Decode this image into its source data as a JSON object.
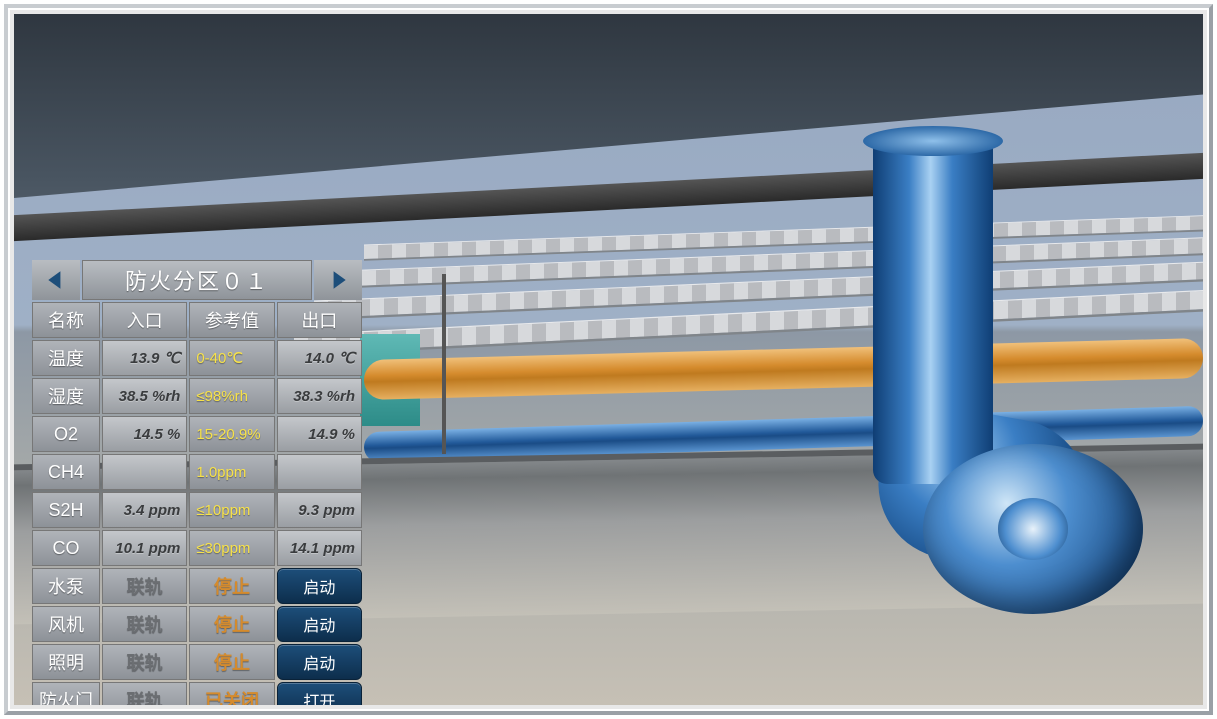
{
  "zone": {
    "title": "防火分区０１"
  },
  "headers": {
    "name": "名称",
    "inlet": "入口",
    "ref": "参考值",
    "outlet": "出口"
  },
  "sensors": [
    {
      "name": "温度",
      "inlet": "13.9 ℃",
      "ref": "0-40℃",
      "outlet": "14.0 ℃"
    },
    {
      "name": "湿度",
      "inlet": "38.5 %rh",
      "ref": "≤98%rh",
      "outlet": "38.3 %rh"
    },
    {
      "name": "O2",
      "inlet": "14.5 %",
      "ref": "15-20.9%",
      "outlet": "14.9 %"
    },
    {
      "name": "CH4",
      "inlet": "",
      "ref": "1.0ppm",
      "outlet": ""
    },
    {
      "name": "S2H",
      "inlet": "3.4 ppm",
      "ref": "≤10ppm",
      "outlet": "9.3 ppm"
    },
    {
      "name": "CO",
      "inlet": "10.1 ppm",
      "ref": "≤30ppm",
      "outlet": "14.1 ppm"
    }
  ],
  "devices": [
    {
      "name": "水泵",
      "link": "联轨",
      "status": "停止",
      "action": "启动"
    },
    {
      "name": "风机",
      "link": "联轨",
      "status": "停止",
      "action": "启动"
    },
    {
      "name": "照明",
      "link": "联轨",
      "status": "停止",
      "action": "启动"
    },
    {
      "name": "防火门",
      "link": "联轨",
      "status": "已关闭",
      "action": "打开"
    }
  ],
  "colors": {
    "ref_text": "#f7e24a",
    "status_text": "#d58b2d",
    "button_bg_top": "#1d4e7a",
    "button_bg_bottom": "#0d2e4c",
    "cell_bg_top": "#b0b4b9",
    "cell_bg_bottom": "#8d9298",
    "arrow_fill": "#1d4e7a",
    "pipe_orange": "#d58b2d",
    "pipe_blue": "#225a9a"
  }
}
